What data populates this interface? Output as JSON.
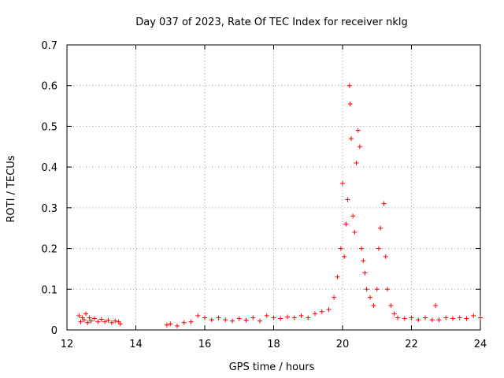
{
  "chart_data": {
    "type": "scatter",
    "title": "Day 037 of 2023, Rate Of TEC Index for receiver nklg",
    "xlabel": "GPS time / hours",
    "ylabel": "ROTI / TECUs",
    "xlim": [
      12,
      24
    ],
    "ylim": [
      0,
      0.7
    ],
    "xticks": [
      "12",
      "14",
      "16",
      "18",
      "20",
      "22",
      "24"
    ],
    "yticks": [
      "0",
      "0.1",
      "0.2",
      "0.3",
      "0.4",
      "0.5",
      "0.6",
      "0.7"
    ],
    "grid": true,
    "marker": "+",
    "color": "#ff0000",
    "series": [
      {
        "points": [
          [
            12.35,
            0.035
          ],
          [
            12.4,
            0.02
          ],
          [
            12.45,
            0.03
          ],
          [
            12.5,
            0.025
          ],
          [
            12.55,
            0.04
          ],
          [
            12.6,
            0.018
          ],
          [
            12.65,
            0.03
          ],
          [
            12.7,
            0.022
          ],
          [
            12.8,
            0.028
          ],
          [
            12.9,
            0.02
          ],
          [
            13.0,
            0.026
          ],
          [
            13.1,
            0.02
          ],
          [
            13.2,
            0.024
          ],
          [
            13.3,
            0.018
          ],
          [
            13.4,
            0.022
          ],
          [
            13.5,
            0.02
          ],
          [
            13.55,
            0.015
          ],
          [
            14.9,
            0.012
          ],
          [
            15.0,
            0.015
          ],
          [
            15.2,
            0.01
          ],
          [
            15.4,
            0.018
          ],
          [
            15.6,
            0.02
          ],
          [
            15.8,
            0.035
          ],
          [
            16.0,
            0.03
          ],
          [
            16.2,
            0.025
          ],
          [
            16.4,
            0.03
          ],
          [
            16.6,
            0.025
          ],
          [
            16.8,
            0.022
          ],
          [
            17.0,
            0.028
          ],
          [
            17.2,
            0.024
          ],
          [
            17.4,
            0.03
          ],
          [
            17.6,
            0.022
          ],
          [
            17.8,
            0.035
          ],
          [
            18.0,
            0.03
          ],
          [
            18.2,
            0.028
          ],
          [
            18.4,
            0.032
          ],
          [
            18.6,
            0.03
          ],
          [
            18.8,
            0.035
          ],
          [
            19.0,
            0.03
          ],
          [
            19.2,
            0.04
          ],
          [
            19.4,
            0.045
          ],
          [
            19.6,
            0.05
          ],
          [
            19.75,
            0.08
          ],
          [
            19.85,
            0.13
          ],
          [
            19.95,
            0.2
          ],
          [
            20.0,
            0.36
          ],
          [
            20.05,
            0.18
          ],
          [
            20.1,
            0.26
          ],
          [
            20.15,
            0.32
          ],
          [
            20.2,
            0.6
          ],
          [
            20.22,
            0.555
          ],
          [
            20.25,
            0.47
          ],
          [
            20.3,
            0.28
          ],
          [
            20.35,
            0.24
          ],
          [
            20.4,
            0.41
          ],
          [
            20.45,
            0.49
          ],
          [
            20.5,
            0.45
          ],
          [
            20.55,
            0.2
          ],
          [
            20.6,
            0.17
          ],
          [
            20.65,
            0.14
          ],
          [
            20.7,
            0.1
          ],
          [
            20.8,
            0.08
          ],
          [
            20.9,
            0.06
          ],
          [
            21.0,
            0.1
          ],
          [
            21.05,
            0.2
          ],
          [
            21.1,
            0.25
          ],
          [
            21.2,
            0.31
          ],
          [
            21.25,
            0.18
          ],
          [
            21.3,
            0.1
          ],
          [
            21.4,
            0.06
          ],
          [
            21.5,
            0.04
          ],
          [
            21.6,
            0.03
          ],
          [
            21.8,
            0.028
          ],
          [
            22.0,
            0.03
          ],
          [
            22.2,
            0.025
          ],
          [
            22.4,
            0.03
          ],
          [
            22.6,
            0.025
          ],
          [
            22.7,
            0.06
          ],
          [
            22.8,
            0.025
          ],
          [
            23.0,
            0.03
          ],
          [
            23.2,
            0.028
          ],
          [
            23.4,
            0.03
          ],
          [
            23.6,
            0.028
          ],
          [
            23.8,
            0.035
          ],
          [
            24.0,
            0.03
          ]
        ]
      }
    ]
  }
}
